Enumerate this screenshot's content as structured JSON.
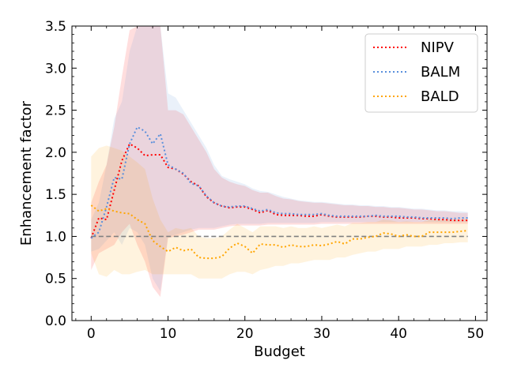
{
  "chart_data": {
    "type": "line",
    "title": "",
    "xlabel": "Budget",
    "ylabel": "Enhancement factor",
    "xlim": [
      -2.5,
      51.5
    ],
    "ylim": [
      0.0,
      3.5
    ],
    "xticks": [
      0,
      10,
      20,
      30,
      40,
      50
    ],
    "xtick_labels": [
      "0",
      "10",
      "20",
      "30",
      "40",
      "50"
    ],
    "yticks": [
      0.0,
      0.5,
      1.0,
      1.5,
      2.0,
      2.5,
      3.0,
      3.5
    ],
    "ytick_labels": [
      "0.0",
      "0.5",
      "1.0",
      "1.5",
      "2.0",
      "2.5",
      "3.0",
      "3.5"
    ],
    "grid": false,
    "legend_position": "top-right",
    "baseline": {
      "y": 1.0,
      "color": "#808080",
      "style": "dashed"
    },
    "x": [
      0,
      1,
      2,
      3,
      4,
      5,
      6,
      7,
      8,
      9,
      10,
      11,
      12,
      13,
      14,
      15,
      16,
      17,
      18,
      19,
      20,
      21,
      22,
      23,
      24,
      25,
      26,
      27,
      28,
      29,
      30,
      31,
      32,
      33,
      34,
      35,
      36,
      37,
      38,
      39,
      40,
      41,
      42,
      43,
      44,
      45,
      46,
      47,
      48,
      49
    ],
    "series": [
      {
        "name": "NIPV",
        "color": "#ff0000",
        "mean": [
          0.98,
          1.22,
          1.2,
          1.55,
          1.9,
          2.1,
          2.05,
          1.96,
          1.97,
          1.97,
          1.82,
          1.8,
          1.74,
          1.65,
          1.6,
          1.47,
          1.4,
          1.36,
          1.34,
          1.35,
          1.35,
          1.32,
          1.28,
          1.31,
          1.26,
          1.25,
          1.25,
          1.25,
          1.24,
          1.24,
          1.26,
          1.24,
          1.23,
          1.23,
          1.23,
          1.23,
          1.24,
          1.24,
          1.23,
          1.23,
          1.22,
          1.22,
          1.22,
          1.21,
          1.21,
          1.2,
          1.2,
          1.19,
          1.19,
          1.19
        ],
        "lower": [
          0.6,
          0.8,
          0.85,
          0.9,
          1.05,
          1.15,
          0.9,
          0.7,
          0.4,
          0.28,
          0.98,
          1.0,
          1.02,
          1.05,
          1.08,
          1.08,
          1.08,
          1.1,
          1.12,
          1.13,
          1.13,
          1.13,
          1.13,
          1.14,
          1.14,
          1.14,
          1.14,
          1.14,
          1.14,
          1.14,
          1.15,
          1.15,
          1.15,
          1.15,
          1.15,
          1.15,
          1.15,
          1.15,
          1.15,
          1.15,
          1.15,
          1.15,
          1.15,
          1.15,
          1.15,
          1.15,
          1.15,
          1.15,
          1.15,
          1.15
        ],
        "upper": [
          1.4,
          1.65,
          1.85,
          2.3,
          2.9,
          3.45,
          3.5,
          3.5,
          3.5,
          3.5,
          2.5,
          2.5,
          2.45,
          2.3,
          2.15,
          2.0,
          1.8,
          1.7,
          1.65,
          1.62,
          1.6,
          1.55,
          1.52,
          1.52,
          1.48,
          1.45,
          1.44,
          1.42,
          1.41,
          1.4,
          1.4,
          1.39,
          1.38,
          1.37,
          1.37,
          1.36,
          1.36,
          1.35,
          1.35,
          1.34,
          1.34,
          1.33,
          1.32,
          1.32,
          1.31,
          1.3,
          1.3,
          1.29,
          1.28,
          1.28
        ]
      },
      {
        "name": "BALM",
        "color": "#5a8fdc",
        "mean": [
          0.98,
          1.05,
          1.35,
          1.7,
          1.68,
          2.1,
          2.3,
          2.25,
          2.1,
          2.22,
          1.85,
          1.8,
          1.75,
          1.63,
          1.6,
          1.48,
          1.4,
          1.36,
          1.35,
          1.36,
          1.36,
          1.33,
          1.3,
          1.32,
          1.28,
          1.27,
          1.27,
          1.26,
          1.26,
          1.26,
          1.27,
          1.25,
          1.24,
          1.24,
          1.24,
          1.24,
          1.24,
          1.25,
          1.24,
          1.24,
          1.24,
          1.23,
          1.23,
          1.22,
          1.22,
          1.22,
          1.22,
          1.21,
          1.22,
          1.22
        ],
        "lower": [
          0.82,
          0.85,
          0.95,
          1.05,
          0.9,
          1.1,
          1.05,
          0.9,
          0.5,
          0.35,
          1.0,
          1.02,
          1.05,
          1.08,
          1.1,
          1.1,
          1.1,
          1.12,
          1.14,
          1.15,
          1.15,
          1.15,
          1.15,
          1.16,
          1.16,
          1.16,
          1.16,
          1.16,
          1.16,
          1.16,
          1.17,
          1.17,
          1.17,
          1.17,
          1.17,
          1.17,
          1.17,
          1.17,
          1.17,
          1.17,
          1.17,
          1.17,
          1.17,
          1.17,
          1.17,
          1.17,
          1.17,
          1.17,
          1.17,
          1.17
        ],
        "upper": [
          1.2,
          1.4,
          1.85,
          2.4,
          2.6,
          3.2,
          3.5,
          3.5,
          3.5,
          3.5,
          2.7,
          2.65,
          2.5,
          2.35,
          2.2,
          2.05,
          1.85,
          1.72,
          1.68,
          1.65,
          1.62,
          1.57,
          1.54,
          1.53,
          1.5,
          1.47,
          1.45,
          1.43,
          1.42,
          1.41,
          1.41,
          1.4,
          1.39,
          1.38,
          1.38,
          1.37,
          1.37,
          1.36,
          1.36,
          1.35,
          1.35,
          1.34,
          1.33,
          1.33,
          1.32,
          1.31,
          1.31,
          1.3,
          1.3,
          1.29
        ]
      },
      {
        "name": "BALD",
        "color": "#ffa500",
        "mean": [
          1.37,
          1.3,
          1.33,
          1.3,
          1.28,
          1.27,
          1.2,
          1.15,
          0.95,
          0.88,
          0.82,
          0.87,
          0.83,
          0.85,
          0.75,
          0.74,
          0.74,
          0.76,
          0.86,
          0.92,
          0.88,
          0.8,
          0.91,
          0.9,
          0.9,
          0.87,
          0.9,
          0.88,
          0.88,
          0.9,
          0.89,
          0.91,
          0.94,
          0.91,
          0.97,
          0.97,
          0.99,
          1.0,
          1.04,
          1.03,
          1.0,
          1.02,
          1.0,
          1.0,
          1.05,
          1.05,
          1.05,
          1.05,
          1.06,
          1.07
        ],
        "lower": [
          0.8,
          0.55,
          0.52,
          0.6,
          0.55,
          0.55,
          0.58,
          0.6,
          0.55,
          0.55,
          0.55,
          0.55,
          0.55,
          0.55,
          0.5,
          0.5,
          0.5,
          0.5,
          0.55,
          0.58,
          0.58,
          0.55,
          0.6,
          0.62,
          0.65,
          0.65,
          0.68,
          0.68,
          0.7,
          0.72,
          0.72,
          0.72,
          0.75,
          0.75,
          0.78,
          0.8,
          0.82,
          0.82,
          0.85,
          0.85,
          0.85,
          0.88,
          0.88,
          0.88,
          0.9,
          0.9,
          0.92,
          0.92,
          0.93,
          0.93
        ],
        "upper": [
          1.95,
          2.05,
          2.08,
          2.05,
          2.02,
          1.95,
          1.88,
          1.8,
          1.45,
          1.2,
          1.05,
          1.1,
          1.08,
          1.1,
          1.0,
          0.98,
          0.98,
          1.0,
          1.08,
          1.15,
          1.1,
          1.05,
          1.12,
          1.12,
          1.12,
          1.1,
          1.12,
          1.1,
          1.1,
          1.12,
          1.1,
          1.12,
          1.14,
          1.12,
          1.16,
          1.16,
          1.17,
          1.17,
          1.2,
          1.19,
          1.17,
          1.18,
          1.17,
          1.17,
          1.2,
          1.2,
          1.2,
          1.2,
          1.2,
          1.21
        ]
      }
    ]
  }
}
